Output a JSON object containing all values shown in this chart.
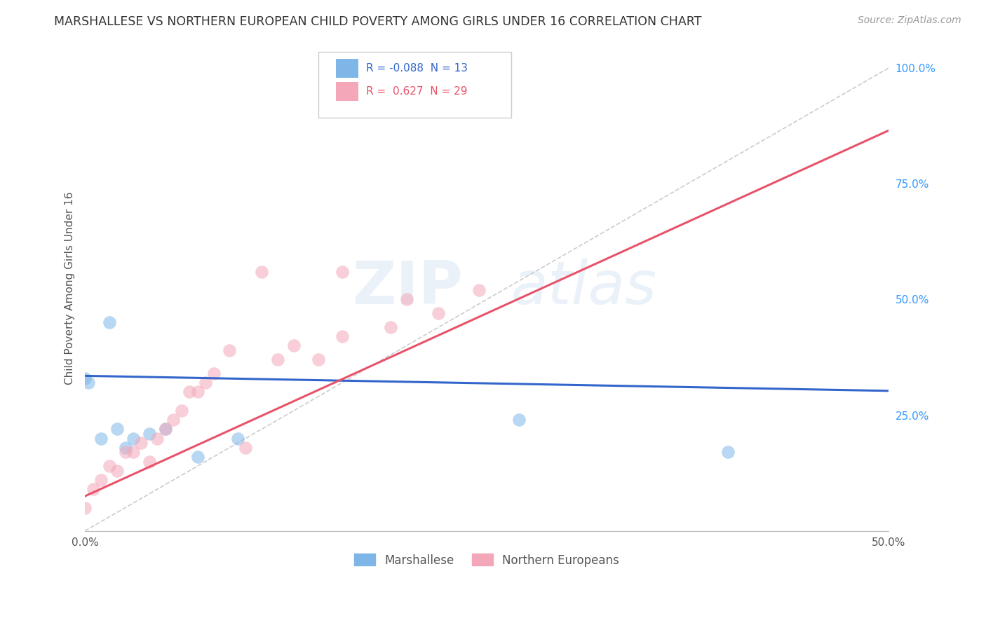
{
  "title": "MARSHALLESE VS NORTHERN EUROPEAN CHILD POVERTY AMONG GIRLS UNDER 16 CORRELATION CHART",
  "source": "Source: ZipAtlas.com",
  "ylabel": "Child Poverty Among Girls Under 16",
  "xlim": [
    0.0,
    0.5
  ],
  "ylim": [
    0.0,
    1.05
  ],
  "series1_name": "Marshallese",
  "series1_color": "#7eb6e8",
  "series1_R": "-0.088",
  "series1_N": "13",
  "series1_x": [
    0.0,
    0.002,
    0.01,
    0.015,
    0.02,
    0.025,
    0.03,
    0.04,
    0.05,
    0.07,
    0.095,
    0.27,
    0.4
  ],
  "series1_y": [
    0.33,
    0.32,
    0.2,
    0.45,
    0.22,
    0.18,
    0.2,
    0.21,
    0.22,
    0.16,
    0.2,
    0.24,
    0.17
  ],
  "series2_name": "Northern Europeans",
  "series2_color": "#f4a7b9",
  "series2_R": "0.627",
  "series2_N": "29",
  "series2_x": [
    0.0,
    0.005,
    0.01,
    0.015,
    0.02,
    0.025,
    0.03,
    0.035,
    0.04,
    0.045,
    0.05,
    0.055,
    0.06,
    0.065,
    0.07,
    0.075,
    0.08,
    0.09,
    0.1,
    0.11,
    0.12,
    0.13,
    0.145,
    0.16,
    0.19,
    0.22,
    0.245,
    0.16,
    0.2
  ],
  "series2_y": [
    0.05,
    0.09,
    0.11,
    0.14,
    0.13,
    0.17,
    0.17,
    0.19,
    0.15,
    0.2,
    0.22,
    0.24,
    0.26,
    0.3,
    0.3,
    0.32,
    0.34,
    0.39,
    0.18,
    0.56,
    0.37,
    0.4,
    0.37,
    0.42,
    0.44,
    0.47,
    0.52,
    0.56,
    0.5
  ],
  "watermark_text": "ZIPatlas",
  "background_color": "#ffffff",
  "grid_color": "#e0e0e0",
  "dot_size": 180,
  "dot_alpha": 0.55,
  "blue_line_intercept": 0.335,
  "blue_line_slope": -0.065,
  "pink_line_intercept": 0.075,
  "pink_line_slope": 1.58,
  "dash_line_x": [
    0.0,
    0.5
  ],
  "dash_line_y": [
    0.0,
    1.0
  ],
  "legend_R_color": "#3366cc",
  "legend_R2_color": "#e8536a",
  "right_yticks": [
    0.25,
    0.5,
    0.75,
    1.0
  ],
  "right_yticklabels": [
    "25.0%",
    "50.0%",
    "75.0%",
    "100.0%"
  ]
}
